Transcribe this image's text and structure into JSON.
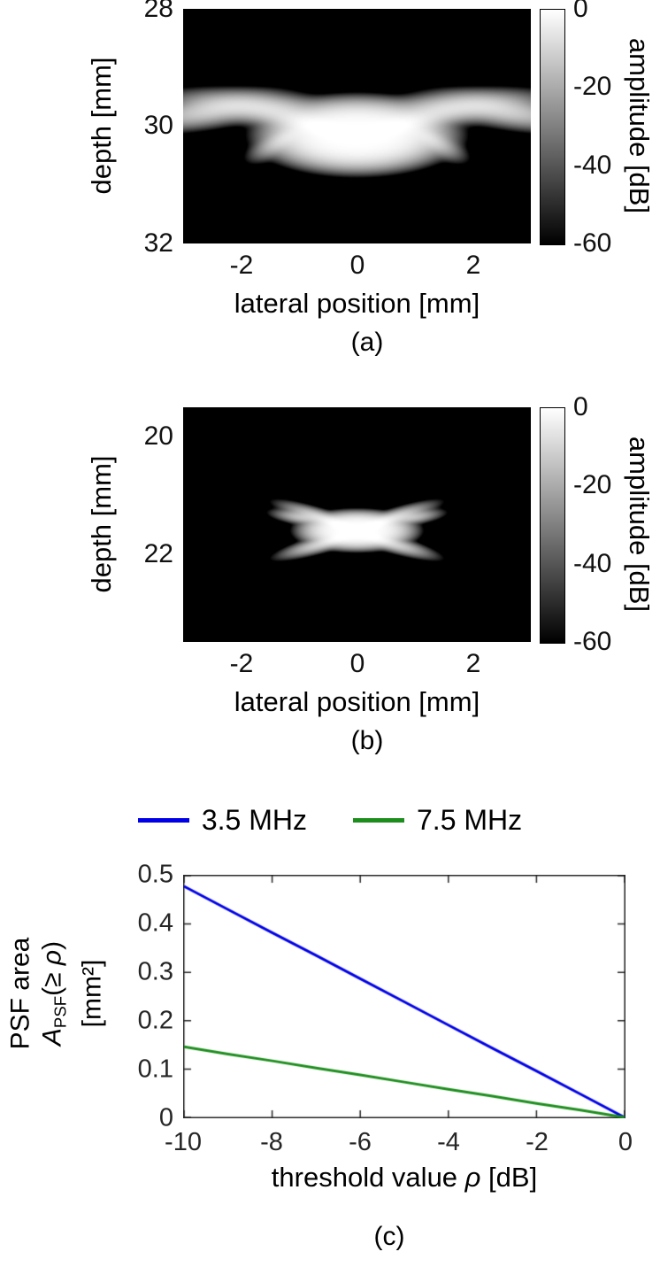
{
  "figure": {
    "captions": [
      "(a)",
      "(b)",
      "(c)"
    ]
  },
  "panel_c": {
    "legend": [
      {
        "label": "3.5 MHz",
        "color": "#0000e6"
      },
      {
        "label": "7.5 MHz",
        "color": "#1d8e1d"
      }
    ],
    "ylabel_line1": "PSF area",
    "ylabel_A": "A",
    "ylabel_Asub": "PSF",
    "ylabel_open": "(≥ ",
    "ylabel_rho": "ρ",
    "ylabel_close": ")",
    "ylabel_line3": "[mm²]",
    "xlabel_pre": "threshold value ",
    "xlabel_rho": "ρ",
    "xlabel_post": " [dB]"
  },
  "chart_data": [
    {
      "type": "heatmap",
      "panel": "a",
      "xlabel": "lateral position [mm]",
      "ylabel": "depth [mm]",
      "xlim": [
        -3,
        3
      ],
      "ylim": [
        28,
        32
      ],
      "xticks": [
        -2,
        0,
        2
      ],
      "yticks": [
        28,
        30,
        32
      ],
      "colorbar": {
        "label": "amplitude [dB]",
        "ticks": [
          0,
          -20,
          -40,
          -60
        ],
        "range_dB": [
          0,
          -60
        ],
        "colormap": "gray"
      },
      "description": "Point spread function: bright main lobe at lateral 0 mm, depth ~30.2 mm, with side-lobe wings extending to ±2.9 mm at depth ~29.7 mm",
      "components": [
        {
          "x": 0,
          "d": 30.15,
          "sx": 1.0,
          "sd": 0.38,
          "rot": 0,
          "amp": 1.0,
          "p": 2
        },
        {
          "x": 0.95,
          "d": 29.92,
          "sx": 0.45,
          "sd": 0.1,
          "rot": -14,
          "amp": 0.38,
          "p": 1
        },
        {
          "x": -0.95,
          "d": 29.92,
          "sx": 0.45,
          "sd": 0.1,
          "rot": 14,
          "amp": 0.38,
          "p": 1
        },
        {
          "x": 1.75,
          "d": 29.68,
          "sx": 0.55,
          "sd": 0.1,
          "rot": -4,
          "amp": 0.34,
          "p": 1
        },
        {
          "x": -1.75,
          "d": 29.68,
          "sx": 0.55,
          "sd": 0.1,
          "rot": 4,
          "amp": 0.34,
          "p": 1
        },
        {
          "x": 2.55,
          "d": 29.74,
          "sx": 0.45,
          "sd": 0.1,
          "rot": 9,
          "amp": 0.26,
          "p": 1
        },
        {
          "x": -2.55,
          "d": 29.74,
          "sx": 0.45,
          "sd": 0.1,
          "rot": -9,
          "amp": 0.26,
          "p": 1
        },
        {
          "x": 1.3,
          "d": 30.24,
          "sx": 0.22,
          "sd": 0.08,
          "rot": 28,
          "amp": 0.22,
          "p": 1
        },
        {
          "x": -1.3,
          "d": 30.24,
          "sx": 0.22,
          "sd": 0.08,
          "rot": -28,
          "amp": 0.22,
          "p": 1
        }
      ]
    },
    {
      "type": "heatmap",
      "panel": "b",
      "xlabel": "lateral position [mm]",
      "ylabel": "depth [mm]",
      "xlim": [
        -3,
        3
      ],
      "ylim": [
        19.5,
        23.5
      ],
      "xticks": [
        -2,
        0,
        2
      ],
      "yticks": [
        20,
        22
      ],
      "colorbar": {
        "label": "amplitude [dB]",
        "ticks": [
          0,
          -20,
          -40,
          -60
        ],
        "range_dB": [
          0,
          -60
        ],
        "colormap": "gray"
      },
      "description": "Point spread function: compact main lobe at lateral 0 mm, depth ~21.6 mm with short X-shaped whiskers",
      "components": [
        {
          "x": 0,
          "d": 21.6,
          "sx": 0.6,
          "sd": 0.2,
          "rot": 0,
          "amp": 1.0,
          "p": 2
        },
        {
          "x": 0.52,
          "d": 21.42,
          "sx": 0.3,
          "sd": 0.05,
          "rot": -18,
          "amp": 0.4,
          "p": 1
        },
        {
          "x": -0.52,
          "d": 21.42,
          "sx": 0.3,
          "sd": 0.05,
          "rot": 18,
          "amp": 0.4,
          "p": 1
        },
        {
          "x": 0.52,
          "d": 21.8,
          "sx": 0.3,
          "sd": 0.05,
          "rot": 16,
          "amp": 0.35,
          "p": 1
        },
        {
          "x": -0.52,
          "d": 21.8,
          "sx": 0.3,
          "sd": 0.05,
          "rot": -16,
          "amp": 0.35,
          "p": 1
        },
        {
          "x": 0.92,
          "d": 21.38,
          "sx": 0.2,
          "sd": 0.045,
          "rot": -8,
          "amp": 0.2,
          "p": 1
        },
        {
          "x": -0.92,
          "d": 21.38,
          "sx": 0.2,
          "sd": 0.045,
          "rot": 8,
          "amp": 0.2,
          "p": 1
        }
      ]
    },
    {
      "type": "line",
      "panel": "c",
      "title": "",
      "xlabel": "threshold value ρ [dB]",
      "ylabel": "PSF area A_PSF(≥ρ) [mm²]",
      "xlim": [
        -10,
        0
      ],
      "ylim": [
        0,
        0.5
      ],
      "xticks": [
        -10,
        -8,
        -6,
        -4,
        -2,
        0
      ],
      "yticks": [
        0,
        0.1,
        0.2,
        0.3,
        0.4,
        0.5
      ],
      "grid": false,
      "legend_position": "top",
      "x": [
        -10,
        -9,
        -8,
        -7,
        -6,
        -5,
        -4,
        -3,
        -2,
        -1,
        0
      ],
      "series": [
        {
          "name": "3.5 MHz",
          "color": "#0000e6",
          "values": [
            0.478,
            0.43,
            0.382,
            0.335,
            0.287,
            0.239,
            0.191,
            0.143,
            0.096,
            0.048,
            0
          ]
        },
        {
          "name": "7.5 MHz",
          "color": "#1d8e1d",
          "values": [
            0.146,
            0.131,
            0.117,
            0.102,
            0.088,
            0.073,
            0.058,
            0.044,
            0.029,
            0.015,
            0
          ]
        }
      ]
    }
  ]
}
